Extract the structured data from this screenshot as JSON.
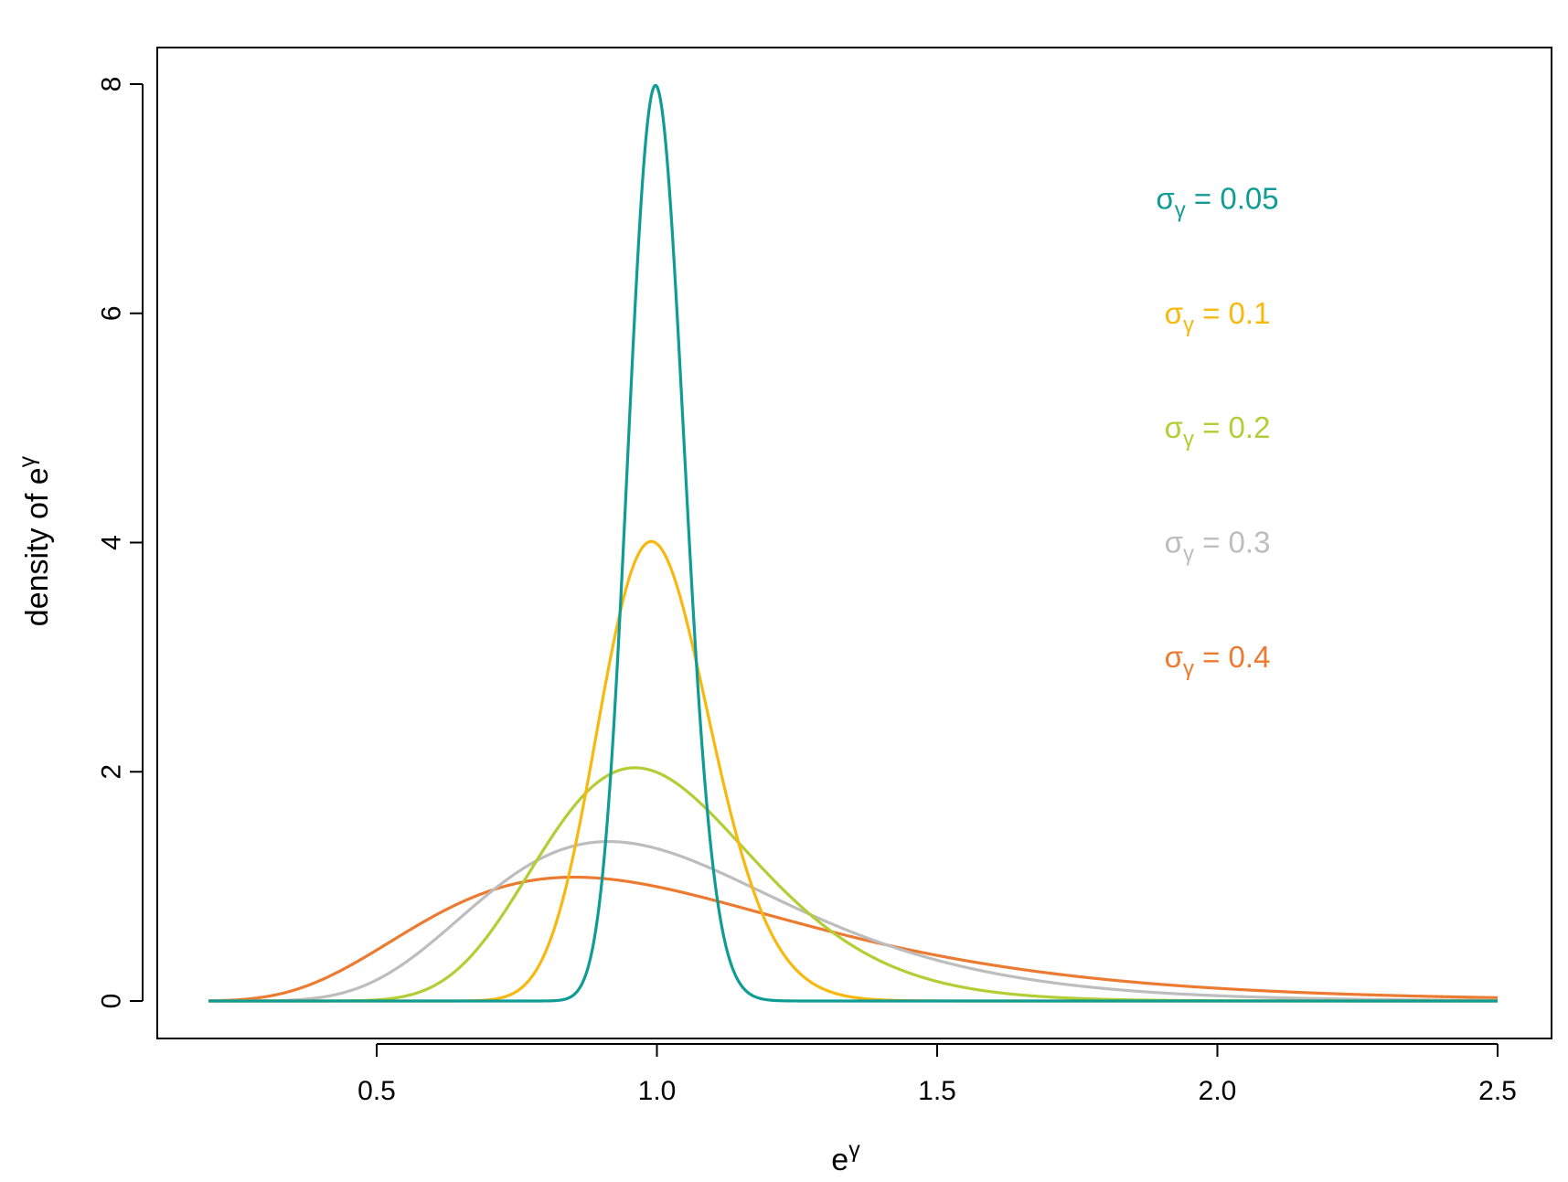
{
  "chart_data": {
    "type": "line",
    "title": "",
    "xlabel": {
      "base": "e",
      "superscript": "γ"
    },
    "ylabel": {
      "text": "density of e",
      "superscript": "γ"
    },
    "xlim": [
      0.2,
      2.5
    ],
    "ylim": [
      0,
      8
    ],
    "x_ticks": [
      0.5,
      1.0,
      1.5,
      2.0,
      2.5
    ],
    "x_tick_labels": [
      "0.5",
      "1.0",
      "1.5",
      "2.0",
      "2.5"
    ],
    "y_ticks": [
      0,
      2,
      4,
      6,
      8
    ],
    "y_tick_labels": [
      "0",
      "2",
      "4",
      "6",
      "8"
    ],
    "grid": false,
    "distribution": "lognormal (mu = 0)",
    "x_range": [
      0.2,
      2.5
    ],
    "series": [
      {
        "sigma": 0.05,
        "sigma_symbol": "σ",
        "sigma_subscript": "γ",
        "value_text": " = 0.05",
        "color": "#0e9c94",
        "peak_x": 1.0,
        "peak_y": 7.98
      },
      {
        "sigma": 0.1,
        "sigma_symbol": "σ",
        "sigma_subscript": "γ",
        "value_text": " = 0.1",
        "color": "#f7b80f",
        "peak_x": 0.99,
        "peak_y": 4.01
      },
      {
        "sigma": 0.2,
        "sigma_symbol": "σ",
        "sigma_subscript": "γ",
        "value_text": " = 0.2",
        "color": "#b3cd35",
        "peak_x": 0.96,
        "peak_y": 2.03
      },
      {
        "sigma": 0.3,
        "sigma_symbol": "σ",
        "sigma_subscript": "γ",
        "value_text": " = 0.3",
        "color": "#bdbdbd",
        "peak_x": 0.91,
        "peak_y": 1.39
      },
      {
        "sigma": 0.4,
        "sigma_symbol": "σ",
        "sigma_subscript": "γ",
        "value_text": " = 0.4",
        "color": "#ec7a30",
        "peak_x": 0.85,
        "peak_y": 1.08
      }
    ],
    "label_values_y": [
      7,
      6,
      5,
      4,
      3
    ],
    "label_value_x": 2.0,
    "draw_order": [
      4,
      3,
      2,
      1,
      0
    ]
  }
}
